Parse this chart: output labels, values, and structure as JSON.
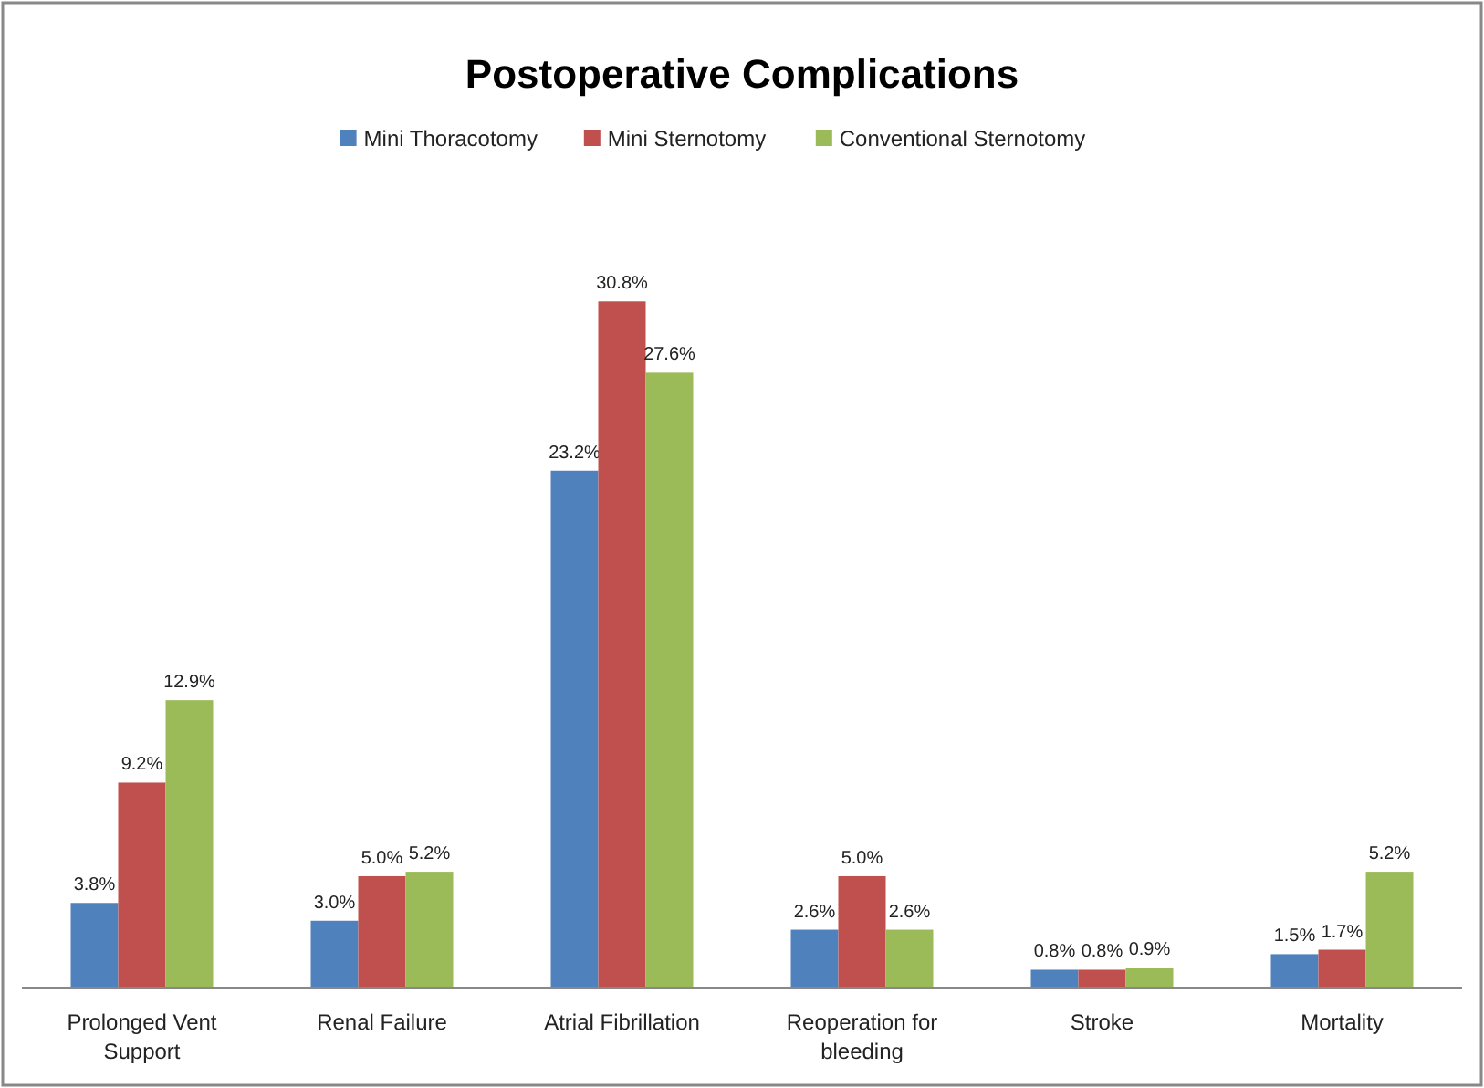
{
  "chart_data": {
    "type": "bar",
    "title": "Postoperative Complications",
    "categories": [
      "Prolonged Vent Support",
      "Renal Failure",
      "Atrial Fibrillation",
      "Reoperation for bleeding",
      "Stroke",
      "Mortality"
    ],
    "series": [
      {
        "name": "Mini Thoracotomy",
        "color": "#4f81bd",
        "values": [
          3.8,
          3.0,
          23.2,
          2.6,
          0.8,
          1.5
        ],
        "value_labels": [
          "3.8%",
          "3.0%",
          "23.2%",
          "2.6%",
          "0.8%",
          "1.5%"
        ]
      },
      {
        "name": "Mini Sternotomy",
        "color": "#c0504d",
        "values": [
          9.2,
          5.0,
          30.8,
          5.0,
          0.8,
          1.7
        ],
        "value_labels": [
          "9.2%",
          "5.0%",
          "30.8%",
          "5.0%",
          "0.8%",
          "1.7%"
        ]
      },
      {
        "name": "Conventional Sternotomy",
        "color": "#9bbb59",
        "values": [
          12.9,
          5.2,
          27.6,
          2.6,
          0.9,
          5.2
        ],
        "value_labels": [
          "12.9%",
          "5.2%",
          "27.6%",
          "2.6%",
          "0.9%",
          "5.2%"
        ]
      }
    ],
    "legend": "top",
    "grid": false
  }
}
